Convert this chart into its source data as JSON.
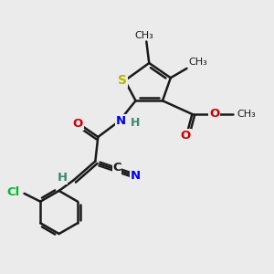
{
  "bg_color": "#ebebeb",
  "bond_color": "#1a1a1a",
  "bond_width": 1.8,
  "atom_colors": {
    "S": "#b8b800",
    "O": "#cc0000",
    "N": "#0000ee",
    "Cl": "#00bb33",
    "H_label": "#3a8a6a"
  },
  "font_size_atoms": 9.5,
  "font_size_small": 8.5,
  "fig_w": 3.0,
  "fig_h": 3.0,
  "dpi": 100,
  "xlim": [
    0,
    10
  ],
  "ylim": [
    0,
    10
  ]
}
